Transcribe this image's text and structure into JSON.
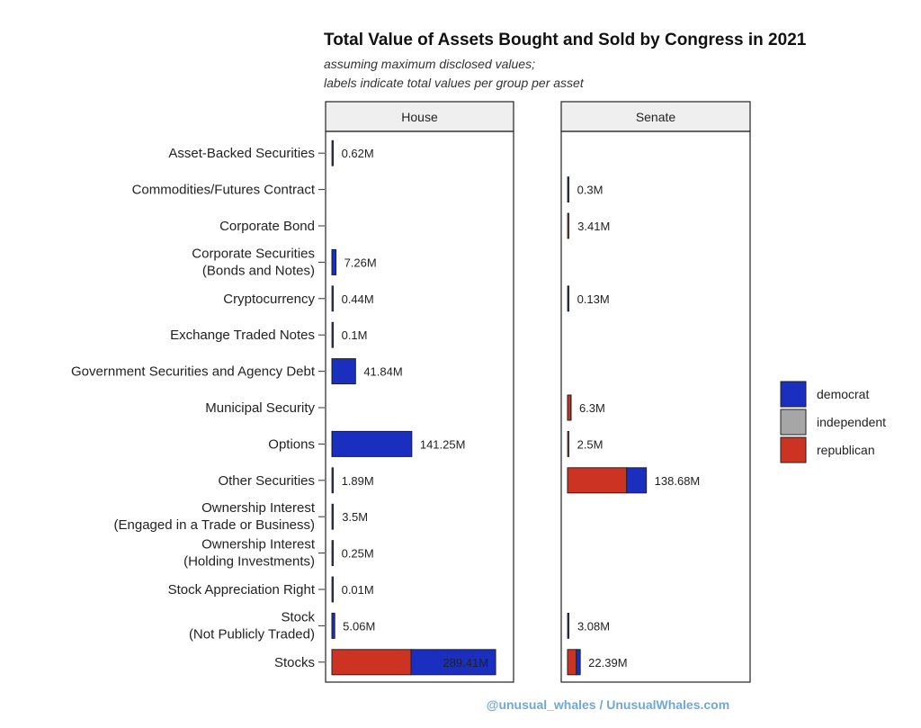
{
  "chart_data": {
    "type": "bar",
    "orientation": "horizontal",
    "stacked": true,
    "title": "Total Value of Assets Bought and Sold by Congress in 2021",
    "subtitle_lines": [
      "assuming maximum disclosed values;",
      "labels indicate total values per group per asset"
    ],
    "categories": [
      "Asset-Backed Securities",
      "Commodities/Futures Contract",
      "Corporate Bond",
      "Corporate Securities (Bonds and Notes)",
      "Cryptocurrency",
      "Exchange Traded Notes",
      "Government Securities and Agency Debt",
      "Municipal Security",
      "Options",
      "Other Securities",
      "Ownership Interest (Engaged in a Trade or Business)",
      "Ownership Interest (Holding Investments)",
      "Stock Appreciation Right",
      "Stock (Not Publicly Traded)",
      "Stocks"
    ],
    "category_lines": [
      [
        "Asset-Backed Securities"
      ],
      [
        "Commodities/Futures Contract"
      ],
      [
        "Corporate Bond"
      ],
      [
        "Corporate Securities",
        "(Bonds and Notes)"
      ],
      [
        "Cryptocurrency"
      ],
      [
        "Exchange Traded Notes"
      ],
      [
        "Government Securities and Agency Debt"
      ],
      [
        "Municipal Security"
      ],
      [
        "Options"
      ],
      [
        "Other Securities"
      ],
      [
        "Ownership Interest",
        "(Engaged in a Trade or Business)"
      ],
      [
        "Ownership Interest",
        "(Holding Investments)"
      ],
      [
        "Stock Appreciation Right"
      ],
      [
        "Stock",
        "(Not Publicly Traded)"
      ],
      [
        "Stocks"
      ]
    ],
    "panels": [
      {
        "name": "House",
        "totals": [
          0.62,
          null,
          null,
          7.26,
          0.44,
          0.1,
          41.84,
          null,
          141.25,
          1.89,
          3.5,
          0.25,
          0.01,
          5.06,
          289.41
        ],
        "labels": [
          "0.62M",
          "",
          "",
          "7.26M",
          "0.44M",
          "0.1M",
          "41.84M",
          "",
          "141.25M",
          "1.89M",
          "3.5M",
          "0.25M",
          "0.01M",
          "5.06M",
          "289.41M"
        ],
        "republican": [
          0.2,
          0,
          0,
          0.3,
          0.1,
          0,
          0.5,
          0,
          0.6,
          0.3,
          0.2,
          0.05,
          0,
          0.4,
          140.0
        ],
        "democrat": [
          0.42,
          0,
          0,
          6.96,
          0.34,
          0.1,
          41.34,
          0,
          140.65,
          1.59,
          3.3,
          0.2,
          0.01,
          4.66,
          149.41
        ]
      },
      {
        "name": "Senate",
        "totals": [
          null,
          0.3,
          3.41,
          null,
          0.13,
          null,
          null,
          6.3,
          2.5,
          138.68,
          null,
          null,
          null,
          3.08,
          22.39
        ],
        "labels": [
          "",
          "0.3M",
          "3.41M",
          "",
          "0.13M",
          "",
          "",
          "6.3M",
          "2.5M",
          "138.68M",
          "",
          "",
          "",
          "3.08M",
          "22.39M"
        ],
        "republican": [
          0,
          0.1,
          2.7,
          0,
          0.05,
          0,
          0,
          6.0,
          1.9,
          104.0,
          0,
          0,
          0,
          0.3,
          15.5
        ],
        "democrat": [
          0,
          0.2,
          0.71,
          0,
          0.08,
          0,
          0,
          0.3,
          0.6,
          34.68,
          0,
          0,
          0,
          2.78,
          6.89
        ]
      }
    ],
    "series": [
      {
        "name": "democrat",
        "color": "#1a2fbf"
      },
      {
        "name": "independent",
        "color": "#a6a6a6"
      },
      {
        "name": "republican",
        "color": "#cc3322"
      }
    ],
    "xlim": [
      0,
      310
    ],
    "grid": false,
    "legend_position": "right"
  },
  "credit": "@unusual_whales / UnusualWhales.com"
}
